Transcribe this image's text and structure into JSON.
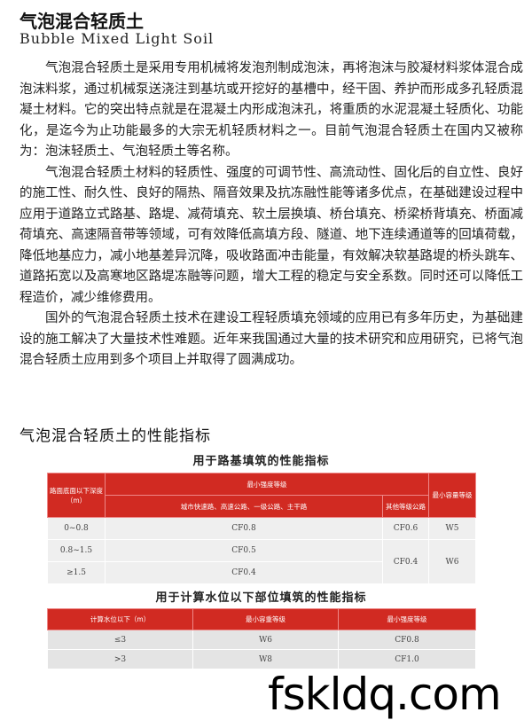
{
  "title": "气泡混合轻质土",
  "subtitle": "Bubble Mixed Light Soil",
  "paragraphs": [
    "气泡混合轻质土是采用专用机械将发泡剂制成泡沫，再将泡沫与胶凝材料浆体混合成泡沫料浆，通过机械泵送浇注到基坑或开挖好的基槽中，经干固、养护而形成多孔轻质混凝土材料。它的突出特点就是在混凝土内形成泡沫孔，将重质的水泥混凝土轻质化、功能化，是迄今为止功能最多的大宗无机轻质材料之一。目前气泡混合轻质土在国内又被称为：泡沫轻质土、气泡轻质土等名称。",
    "气泡混合轻质土材料的轻质性、强度的可调节性、高流动性、固化后的自立性、良好的施工性、耐久性、良好的隔热、隔音效果及抗冻融性能等诸多优点，在基础建设过程中应用于道路立式路基、路堤、减荷填充、软土层换填、桥台填充、桥梁桥背填充、桥面减荷填充、高速隔音带等领域，可有效降低高填方段、隧道、地下连续通道等的回填荷载，降低地基应力，减小地基差异沉降，吸收路面冲击能量，有效解决软基路堤的桥头跳车、道路拓宽以及高寒地区路堤冻融等问题，增大工程的稳定与安全系数。同时还可以降低工程造价，减少维修费用。",
    "国外的气泡混合轻质土技术在建设工程轻质填充领域的应用已有多年历史，为基础建设的施工解决了大量技术性难题。近年来我国通过大量的技术研究和应用研究，已将气泡混合轻质土应用到多个项目上并取得了圆满成功。"
  ],
  "section_heading": "气泡混合轻质土的性能指标",
  "table1": {
    "title": "用于路基填筑的性能指标",
    "h_depth": "路面底面以下深度（m）",
    "h_strength": "最小强度等级",
    "h_city": "城市快速路、高速公路、一级公路、主干路",
    "h_other": "其他等级公路",
    "h_density": "最小容量等级",
    "rows": [
      {
        "depth": "0~0.8",
        "city": "CF0.8",
        "other": "CF0.6",
        "density": "W5"
      },
      {
        "depth": "0.8~1.5",
        "city": "CF0.5",
        "other": "CF0.4",
        "density": "W6"
      },
      {
        "depth": "≥1.5",
        "city": "CF0.4"
      }
    ]
  },
  "table2": {
    "title": "用于计算水位以下部位填筑的性能指标",
    "headers": [
      "计算水位以下（m）",
      "最小容重等级",
      "最小强度等级"
    ],
    "rows": [
      [
        "≤3",
        "W6",
        "CF0.8"
      ],
      [
        ">3",
        "W8",
        "CF1.0"
      ]
    ]
  },
  "watermark": "fskldq.com",
  "accent": "#d12a22"
}
